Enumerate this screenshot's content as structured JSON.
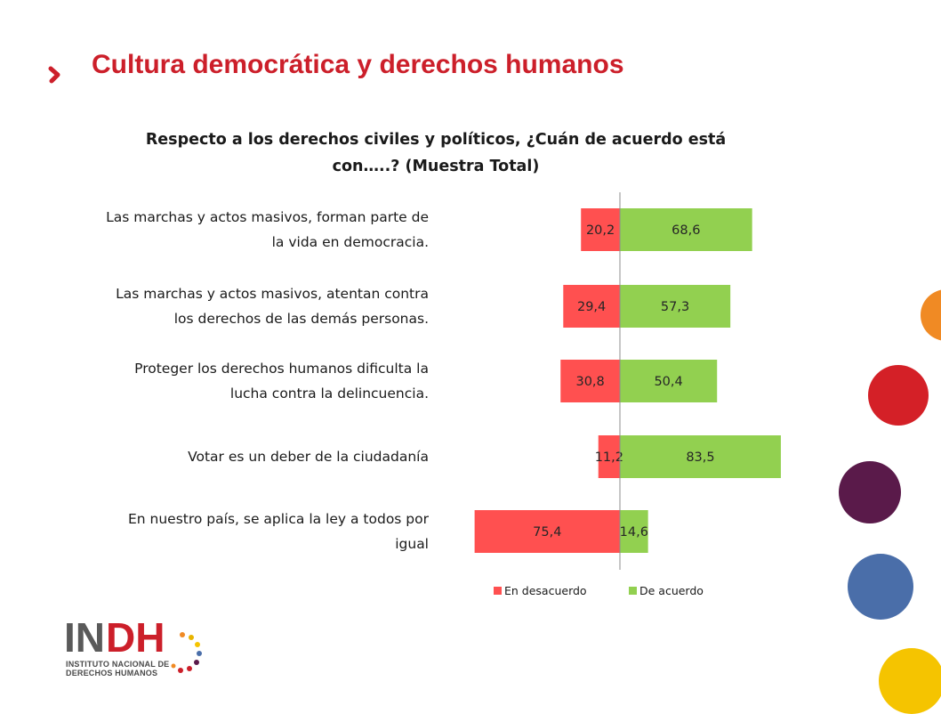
{
  "slide_title": "Cultura democrática y derechos humanos",
  "colors": {
    "title_red": "#cc1f2a",
    "disagree": "#ff5050",
    "agree": "#92d050"
  },
  "logo": {
    "text_gray": "IN",
    "text_red": "DH",
    "subtitle_line1": "INSTITUTO NACIONAL DE",
    "subtitle_line2": "DERECHOS HUMANOS"
  },
  "chart_data": {
    "type": "bar",
    "orientation": "horizontal-diverging",
    "title_line1": "Respecto a los derechos civiles y políticos, ¿Cuán de acuerdo está",
    "title_line2": "con…..?    (Muestra Total)",
    "categories": [
      [
        "Las marchas y actos masivos, forman parte de",
        "la vida en democracia."
      ],
      [
        "Las marchas y actos masivos, atentan contra",
        "los derechos de las demás personas."
      ],
      [
        "Proteger los derechos humanos dificulta la",
        "lucha contra la delincuencia."
      ],
      [
        "Votar es un deber de la ciudadanía"
      ],
      [
        "En nuestro país, se aplica la ley a todos por",
        "igual"
      ]
    ],
    "series": [
      {
        "name": "En desacuerdo",
        "values": [
          20.2,
          29.4,
          30.8,
          11.2,
          75.4
        ],
        "labels": [
          "20,2",
          "29,4",
          "30,8",
          "11,2",
          "75,4"
        ],
        "color": "#ff5050"
      },
      {
        "name": "De acuerdo",
        "values": [
          68.6,
          57.3,
          50.4,
          83.5,
          14.6
        ],
        "labels": [
          "68,6",
          "57,3",
          "50,4",
          "83,5",
          "14,6"
        ],
        "color": "#92d050"
      }
    ],
    "legend_position": "bottom",
    "grid": false
  }
}
